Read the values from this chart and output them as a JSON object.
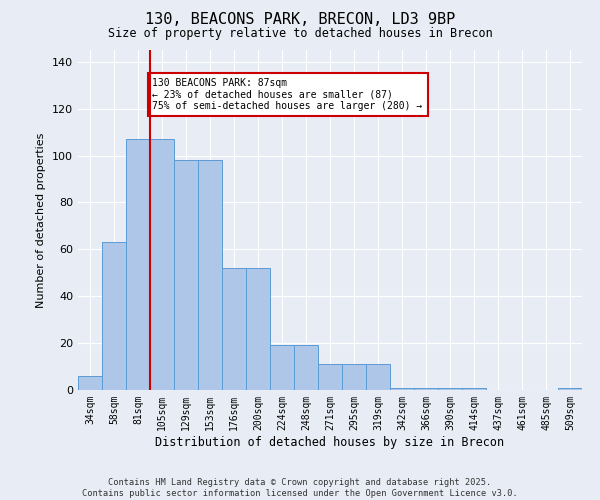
{
  "title": "130, BEACONS PARK, BRECON, LD3 9BP",
  "subtitle": "Size of property relative to detached houses in Brecon",
  "xlabel": "Distribution of detached houses by size in Brecon",
  "ylabel": "Number of detached properties",
  "bar_labels": [
    "34sqm",
    "58sqm",
    "81sqm",
    "105sqm",
    "129sqm",
    "153sqm",
    "176sqm",
    "200sqm",
    "224sqm",
    "248sqm",
    "271sqm",
    "295sqm",
    "319sqm",
    "342sqm",
    "366sqm",
    "390sqm",
    "414sqm",
    "437sqm",
    "461sqm",
    "485sqm",
    "509sqm"
  ],
  "bar_values": [
    6,
    63,
    107,
    107,
    98,
    98,
    52,
    52,
    19,
    19,
    11,
    11,
    11,
    1,
    1,
    1,
    1,
    0,
    0,
    0,
    1
  ],
  "bar_color": "#aec6e8",
  "bar_edge_color": "#5b9bd5",
  "vline_x": 2.5,
  "vline_color": "#cc0000",
  "annotation_text": "130 BEACONS PARK: 87sqm\n← 23% of detached houses are smaller (87)\n75% of semi-detached houses are larger (280) →",
  "annotation_box_color": "#ffffff",
  "annotation_box_edge": "#cc0000",
  "ylim": [
    0,
    145
  ],
  "yticks": [
    0,
    20,
    40,
    60,
    80,
    100,
    120,
    140
  ],
  "background_color": "#e8edf5",
  "grid_color": "#ffffff",
  "footer_line1": "Contains HM Land Registry data © Crown copyright and database right 2025.",
  "footer_line2": "Contains public sector information licensed under the Open Government Licence v3.0."
}
